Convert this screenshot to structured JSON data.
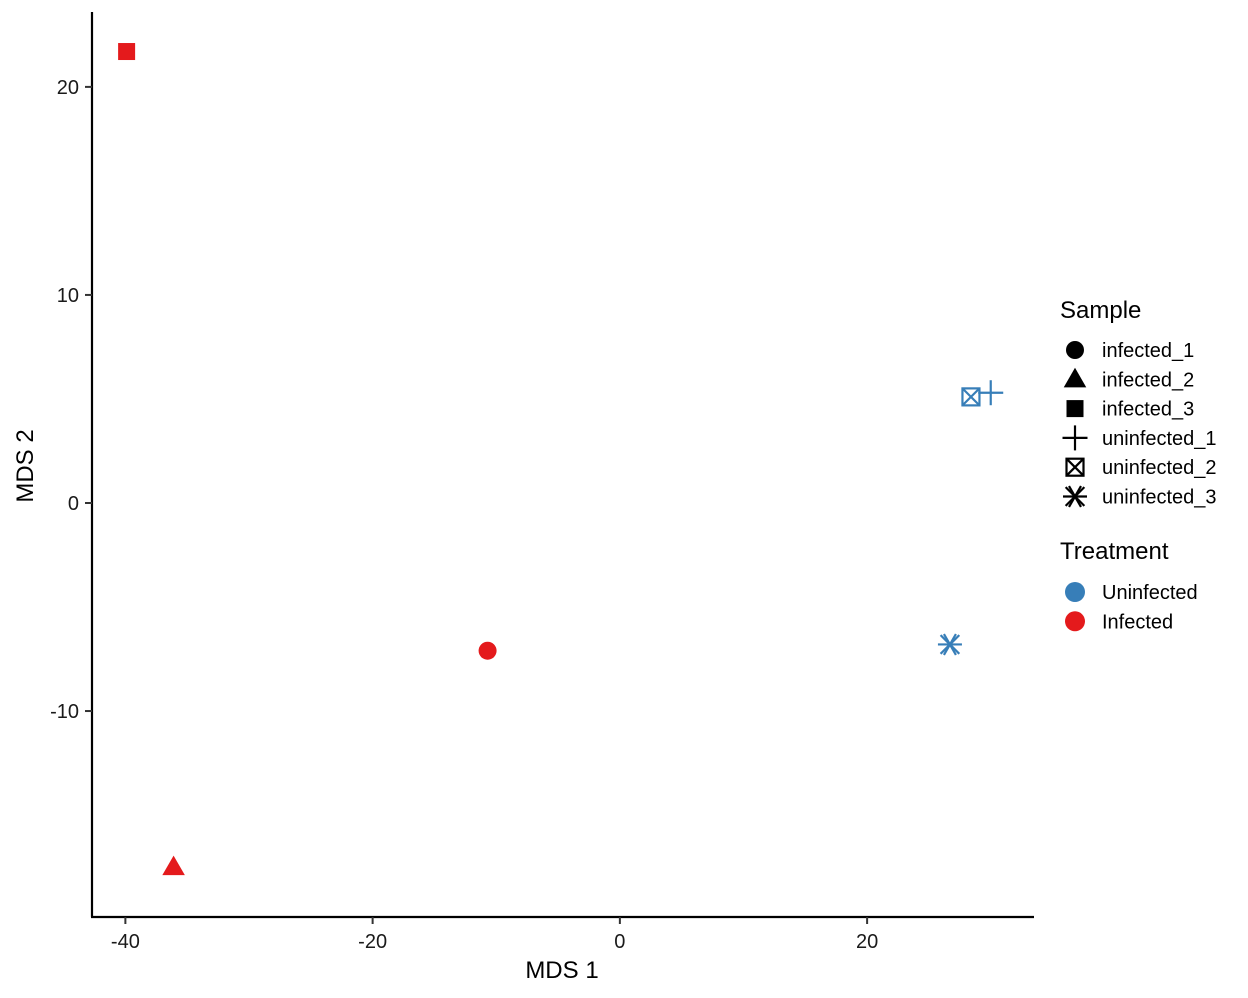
{
  "chart_data": {
    "type": "scatter",
    "title": "",
    "xlabel": "MDS 1",
    "ylabel": "MDS 2",
    "xlim": [
      -42.7,
      33.5
    ],
    "ylim": [
      -19.9,
      23.6
    ],
    "xticks": [
      -40,
      -20,
      0,
      20
    ],
    "yticks": [
      -10,
      0,
      10,
      20
    ],
    "grid": false,
    "legend_position": "right",
    "points": [
      {
        "sample": "infected_1",
        "treatment": "Infected",
        "x": -10.7,
        "y": -7.1
      },
      {
        "sample": "infected_2",
        "treatment": "Infected",
        "x": -36.1,
        "y": -17.5
      },
      {
        "sample": "infected_3",
        "treatment": "Infected",
        "x": -39.9,
        "y": 21.7
      },
      {
        "sample": "uninfected_1",
        "treatment": "Uninfected",
        "x": 30.0,
        "y": 5.3
      },
      {
        "sample": "uninfected_2",
        "treatment": "Uninfected",
        "x": 28.4,
        "y": 5.1
      },
      {
        "sample": "uninfected_3",
        "treatment": "Uninfected",
        "x": 26.7,
        "y": -6.8
      }
    ],
    "legend": {
      "sample": {
        "title": "Sample",
        "entries": [
          {
            "label": "infected_1",
            "shape": "circle"
          },
          {
            "label": "infected_2",
            "shape": "triangle"
          },
          {
            "label": "infected_3",
            "shape": "square"
          },
          {
            "label": "uninfected_1",
            "shape": "plus"
          },
          {
            "label": "uninfected_2",
            "shape": "square-cross"
          },
          {
            "label": "uninfected_3",
            "shape": "asterisk"
          }
        ]
      },
      "treatment": {
        "title": "Treatment",
        "entries": [
          {
            "label": "Uninfected",
            "color": "#377EB8"
          },
          {
            "label": "Infected",
            "color": "#E41A1C"
          }
        ]
      }
    }
  }
}
